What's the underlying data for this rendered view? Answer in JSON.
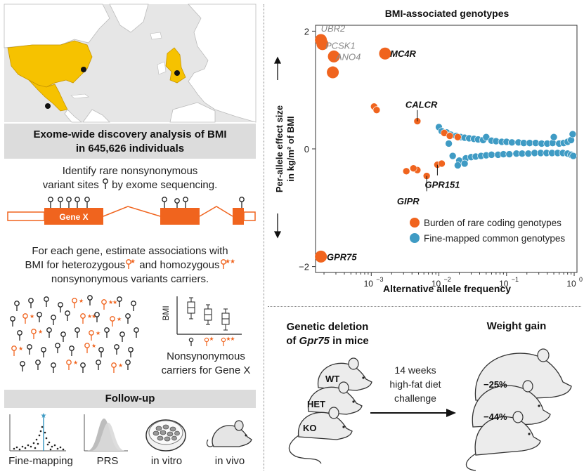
{
  "left": {
    "discovery_title_line1": "Exome-wide discovery analysis of BMI",
    "discovery_title_line2": "in 645,626 individuals",
    "identify_line1": "Identify rare nonsynonymous",
    "identify_line2": "variant sites",
    "identify_line2_end": "by exome sequencing.",
    "gene_label": "Gene X",
    "estimate_line1": "For each gene, estimate associations with",
    "estimate_line2_a": "BMI for heterozygous",
    "estimate_line2_b": "and homozygous",
    "estimate_line3": "nonsynonymous variants carriers.",
    "boxplot_ylabel": "BMI",
    "carriers_line1": "Nonsynonymous",
    "carriers_line2": "carriers for Gene X",
    "followup_title": "Follow-up",
    "followup_items": [
      "Fine-mapping",
      "PRS",
      "in vitro",
      "in vivo"
    ]
  },
  "chart_data": {
    "type": "scatter",
    "title": "BMI-associated genotypes",
    "xlabel": "Alternative allele frequency",
    "ylabel_line1": "Per-allele effect size",
    "ylabel_line2": "in kg/m² of BMI",
    "x_scale": "log10",
    "xlim": [
      0.00015,
      1.1
    ],
    "ylim": [
      -2.1,
      2.1
    ],
    "x_ticks": [
      {
        "value": 0.001,
        "base": "10",
        "exp": "−3"
      },
      {
        "value": 0.01,
        "base": "10",
        "exp": "−2"
      },
      {
        "value": 0.1,
        "base": "10",
        "exp": "−1"
      },
      {
        "value": 1,
        "base": "10",
        "exp": "0"
      }
    ],
    "y_ticks": [
      {
        "value": 2,
        "label": "2"
      },
      {
        "value": 0,
        "label": "0"
      },
      {
        "value": -2,
        "label": "−2"
      }
    ],
    "series": [
      {
        "name": "Burden of rare coding genotypes",
        "color": "#f0641e",
        "points": [
          {
            "x": 0.00018,
            "y": 1.85,
            "big": true
          },
          {
            "x": 0.00019,
            "y": 1.78,
            "big": true
          },
          {
            "x": 0.00028,
            "y": 1.57,
            "big": true
          },
          {
            "x": 0.00027,
            "y": 1.3,
            "big": true
          },
          {
            "x": 0.0016,
            "y": 1.62,
            "big": true
          },
          {
            "x": 0.00018,
            "y": -1.83,
            "big": true
          },
          {
            "x": 0.0011,
            "y": 0.72
          },
          {
            "x": 0.0012,
            "y": 0.66
          },
          {
            "x": 0.0048,
            "y": 0.47
          },
          {
            "x": 0.0048,
            "y": -0.36
          },
          {
            "x": 0.0042,
            "y": -0.33
          },
          {
            "x": 0.0033,
            "y": -0.38
          },
          {
            "x": 0.0066,
            "y": -0.46
          },
          {
            "x": 0.0095,
            "y": -0.27
          },
          {
            "x": 0.011,
            "y": -0.25
          },
          {
            "x": 0.012,
            "y": 0.27
          },
          {
            "x": 0.0145,
            "y": 0.22
          },
          {
            "x": 0.019,
            "y": 0.2
          }
        ]
      },
      {
        "name": "Fine-mapped common genotypes",
        "color": "#3f9bc4",
        "points": [
          {
            "x": 0.01,
            "y": 0.37
          },
          {
            "x": 0.011,
            "y": 0.3
          },
          {
            "x": 0.013,
            "y": 0.28
          },
          {
            "x": 0.015,
            "y": 0.24
          },
          {
            "x": 0.018,
            "y": 0.22
          },
          {
            "x": 0.021,
            "y": 0.2
          },
          {
            "x": 0.024,
            "y": 0.19
          },
          {
            "x": 0.028,
            "y": 0.18
          },
          {
            "x": 0.033,
            "y": 0.17
          },
          {
            "x": 0.038,
            "y": 0.16
          },
          {
            "x": 0.045,
            "y": 0.15
          },
          {
            "x": 0.05,
            "y": 0.2
          },
          {
            "x": 0.06,
            "y": 0.14
          },
          {
            "x": 0.07,
            "y": 0.13
          },
          {
            "x": 0.085,
            "y": 0.12
          },
          {
            "x": 0.1,
            "y": 0.12
          },
          {
            "x": 0.12,
            "y": 0.11
          },
          {
            "x": 0.15,
            "y": 0.11
          },
          {
            "x": 0.18,
            "y": 0.1
          },
          {
            "x": 0.22,
            "y": 0.1
          },
          {
            "x": 0.27,
            "y": 0.1
          },
          {
            "x": 0.33,
            "y": 0.09
          },
          {
            "x": 0.4,
            "y": 0.09
          },
          {
            "x": 0.48,
            "y": 0.1
          },
          {
            "x": 0.5,
            "y": 0.2
          },
          {
            "x": 0.6,
            "y": 0.09
          },
          {
            "x": 0.7,
            "y": 0.1
          },
          {
            "x": 0.8,
            "y": 0.12
          },
          {
            "x": 0.9,
            "y": 0.15
          },
          {
            "x": 0.95,
            "y": 0.25
          },
          {
            "x": 0.014,
            "y": 0.09
          },
          {
            "x": 0.016,
            "y": -0.12
          },
          {
            "x": 0.02,
            "y": -0.2
          },
          {
            "x": 0.025,
            "y": -0.16
          },
          {
            "x": 0.03,
            "y": -0.14
          },
          {
            "x": 0.035,
            "y": -0.13
          },
          {
            "x": 0.042,
            "y": -0.12
          },
          {
            "x": 0.05,
            "y": -0.11
          },
          {
            "x": 0.06,
            "y": -0.1
          },
          {
            "x": 0.075,
            "y": -0.1
          },
          {
            "x": 0.09,
            "y": -0.09
          },
          {
            "x": 0.11,
            "y": -0.09
          },
          {
            "x": 0.14,
            "y": -0.08
          },
          {
            "x": 0.17,
            "y": -0.08
          },
          {
            "x": 0.21,
            "y": -0.08
          },
          {
            "x": 0.26,
            "y": -0.07
          },
          {
            "x": 0.32,
            "y": -0.07
          },
          {
            "x": 0.39,
            "y": -0.07
          },
          {
            "x": 0.47,
            "y": -0.07
          },
          {
            "x": 0.57,
            "y": -0.07
          },
          {
            "x": 0.68,
            "y": -0.07
          },
          {
            "x": 0.8,
            "y": -0.08
          },
          {
            "x": 0.9,
            "y": -0.1
          },
          {
            "x": 0.97,
            "y": -0.12
          },
          {
            "x": 0.024,
            "y": -0.25
          },
          {
            "x": 0.019,
            "y": -0.28
          }
        ]
      }
    ],
    "labels": [
      {
        "text": "UBR2",
        "x": 0.00018,
        "y": 2.05,
        "style": "gray"
      },
      {
        "text": "PCSK1",
        "x": 0.00021,
        "y": 1.76,
        "style": "gray"
      },
      {
        "text": "ANO4",
        "x": 0.0003,
        "y": 1.57,
        "style": "gray"
      },
      {
        "text": "MC4R",
        "x": 0.0019,
        "y": 1.62,
        "style": "bold"
      },
      {
        "text": "CALCR",
        "x": 0.0032,
        "y": 0.76,
        "style": "bold"
      },
      {
        "text": "GPR151",
        "x": 0.0062,
        "y": -0.6,
        "style": "bold"
      },
      {
        "text": "GIPR",
        "x": 0.0024,
        "y": -0.88,
        "style": "bold"
      },
      {
        "text": "GPR75",
        "x": 0.00022,
        "y": -1.83,
        "style": "bold"
      }
    ],
    "legend_position": "bottom-right"
  },
  "mouse_panel": {
    "title_line1": "Genetic deletion",
    "title_line2_prefix": "of ",
    "title_line2_gene": "Gpr75",
    "title_line2_suffix": " in mice",
    "genotypes": [
      "WT",
      "HET",
      "KO"
    ],
    "arrow_line1": "14 weeks",
    "arrow_line2": "high-fat diet",
    "arrow_line3": "challenge",
    "weight_gain_title": "Weight gain",
    "het_change": "−25%",
    "ko_change": "−44%"
  },
  "colors": {
    "orange": "#f0641e",
    "blue": "#3f9bc4",
    "map_yellow": "#f6c200",
    "gray_band": "#dcdcdc"
  }
}
